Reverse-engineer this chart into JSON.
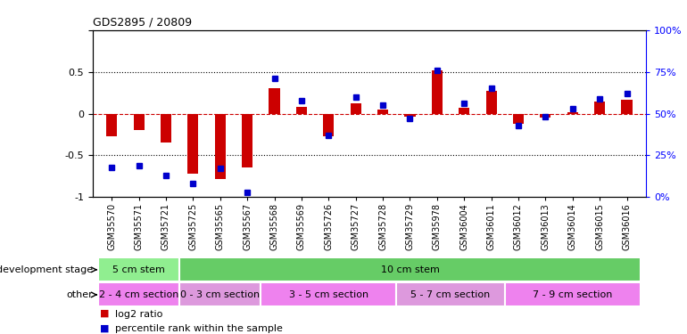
{
  "title": "GDS2895 / 20809",
  "samples": [
    "GSM35570",
    "GSM35571",
    "GSM35721",
    "GSM35725",
    "GSM35565",
    "GSM35567",
    "GSM35568",
    "GSM35569",
    "GSM35726",
    "GSM35727",
    "GSM35728",
    "GSM35729",
    "GSM35978",
    "GSM36004",
    "GSM36011",
    "GSM36012",
    "GSM36013",
    "GSM36014",
    "GSM36015",
    "GSM36016"
  ],
  "log2_ratio": [
    -0.27,
    -0.2,
    -0.35,
    -0.72,
    -0.78,
    -0.65,
    0.3,
    0.08,
    -0.27,
    0.12,
    0.05,
    -0.04,
    0.52,
    0.07,
    0.27,
    -0.12,
    -0.05,
    0.02,
    0.14,
    0.17
  ],
  "percentile": [
    18,
    19,
    13,
    8,
    17,
    3,
    71,
    58,
    37,
    60,
    55,
    47,
    76,
    56,
    65,
    43,
    48,
    53,
    59,
    62
  ],
  "ylim_left": [
    -1,
    1
  ],
  "ylim_right": [
    0,
    100
  ],
  "yticks_left": [
    -1,
    -0.5,
    0,
    0.5,
    1
  ],
  "yticks_right": [
    0,
    25,
    50,
    75,
    100
  ],
  "ytick_labels_right": [
    "0%",
    "25%",
    "50%",
    "75%",
    "100%"
  ],
  "bar_color_red": "#cc0000",
  "bar_color_blue": "#0000cc",
  "zero_line_color": "#cc0000",
  "dotted_line_color": "#000000",
  "bg_color": "#ffffff",
  "plot_bg": "#ffffff",
  "dev_stage_row": [
    {
      "label": "5 cm stem",
      "start": 0,
      "end": 3,
      "color": "#90ee90"
    },
    {
      "label": "10 cm stem",
      "start": 3,
      "end": 20,
      "color": "#66cc66"
    }
  ],
  "other_row": [
    {
      "label": "2 - 4 cm section",
      "start": 0,
      "end": 3,
      "color": "#ee82ee"
    },
    {
      "label": "0 - 3 cm section",
      "start": 3,
      "end": 6,
      "color": "#dd99dd"
    },
    {
      "label": "3 - 5 cm section",
      "start": 6,
      "end": 11,
      "color": "#ee82ee"
    },
    {
      "label": "5 - 7 cm section",
      "start": 11,
      "end": 15,
      "color": "#dd99dd"
    },
    {
      "label": "7 - 9 cm section",
      "start": 15,
      "end": 20,
      "color": "#ee82ee"
    }
  ],
  "row_label_dev": "development stage",
  "row_label_other": "other",
  "legend_items": [
    {
      "label": "log2 ratio",
      "color": "#cc0000"
    },
    {
      "label": "percentile rank within the sample",
      "color": "#0000cc"
    }
  ],
  "bar_width": 0.4
}
